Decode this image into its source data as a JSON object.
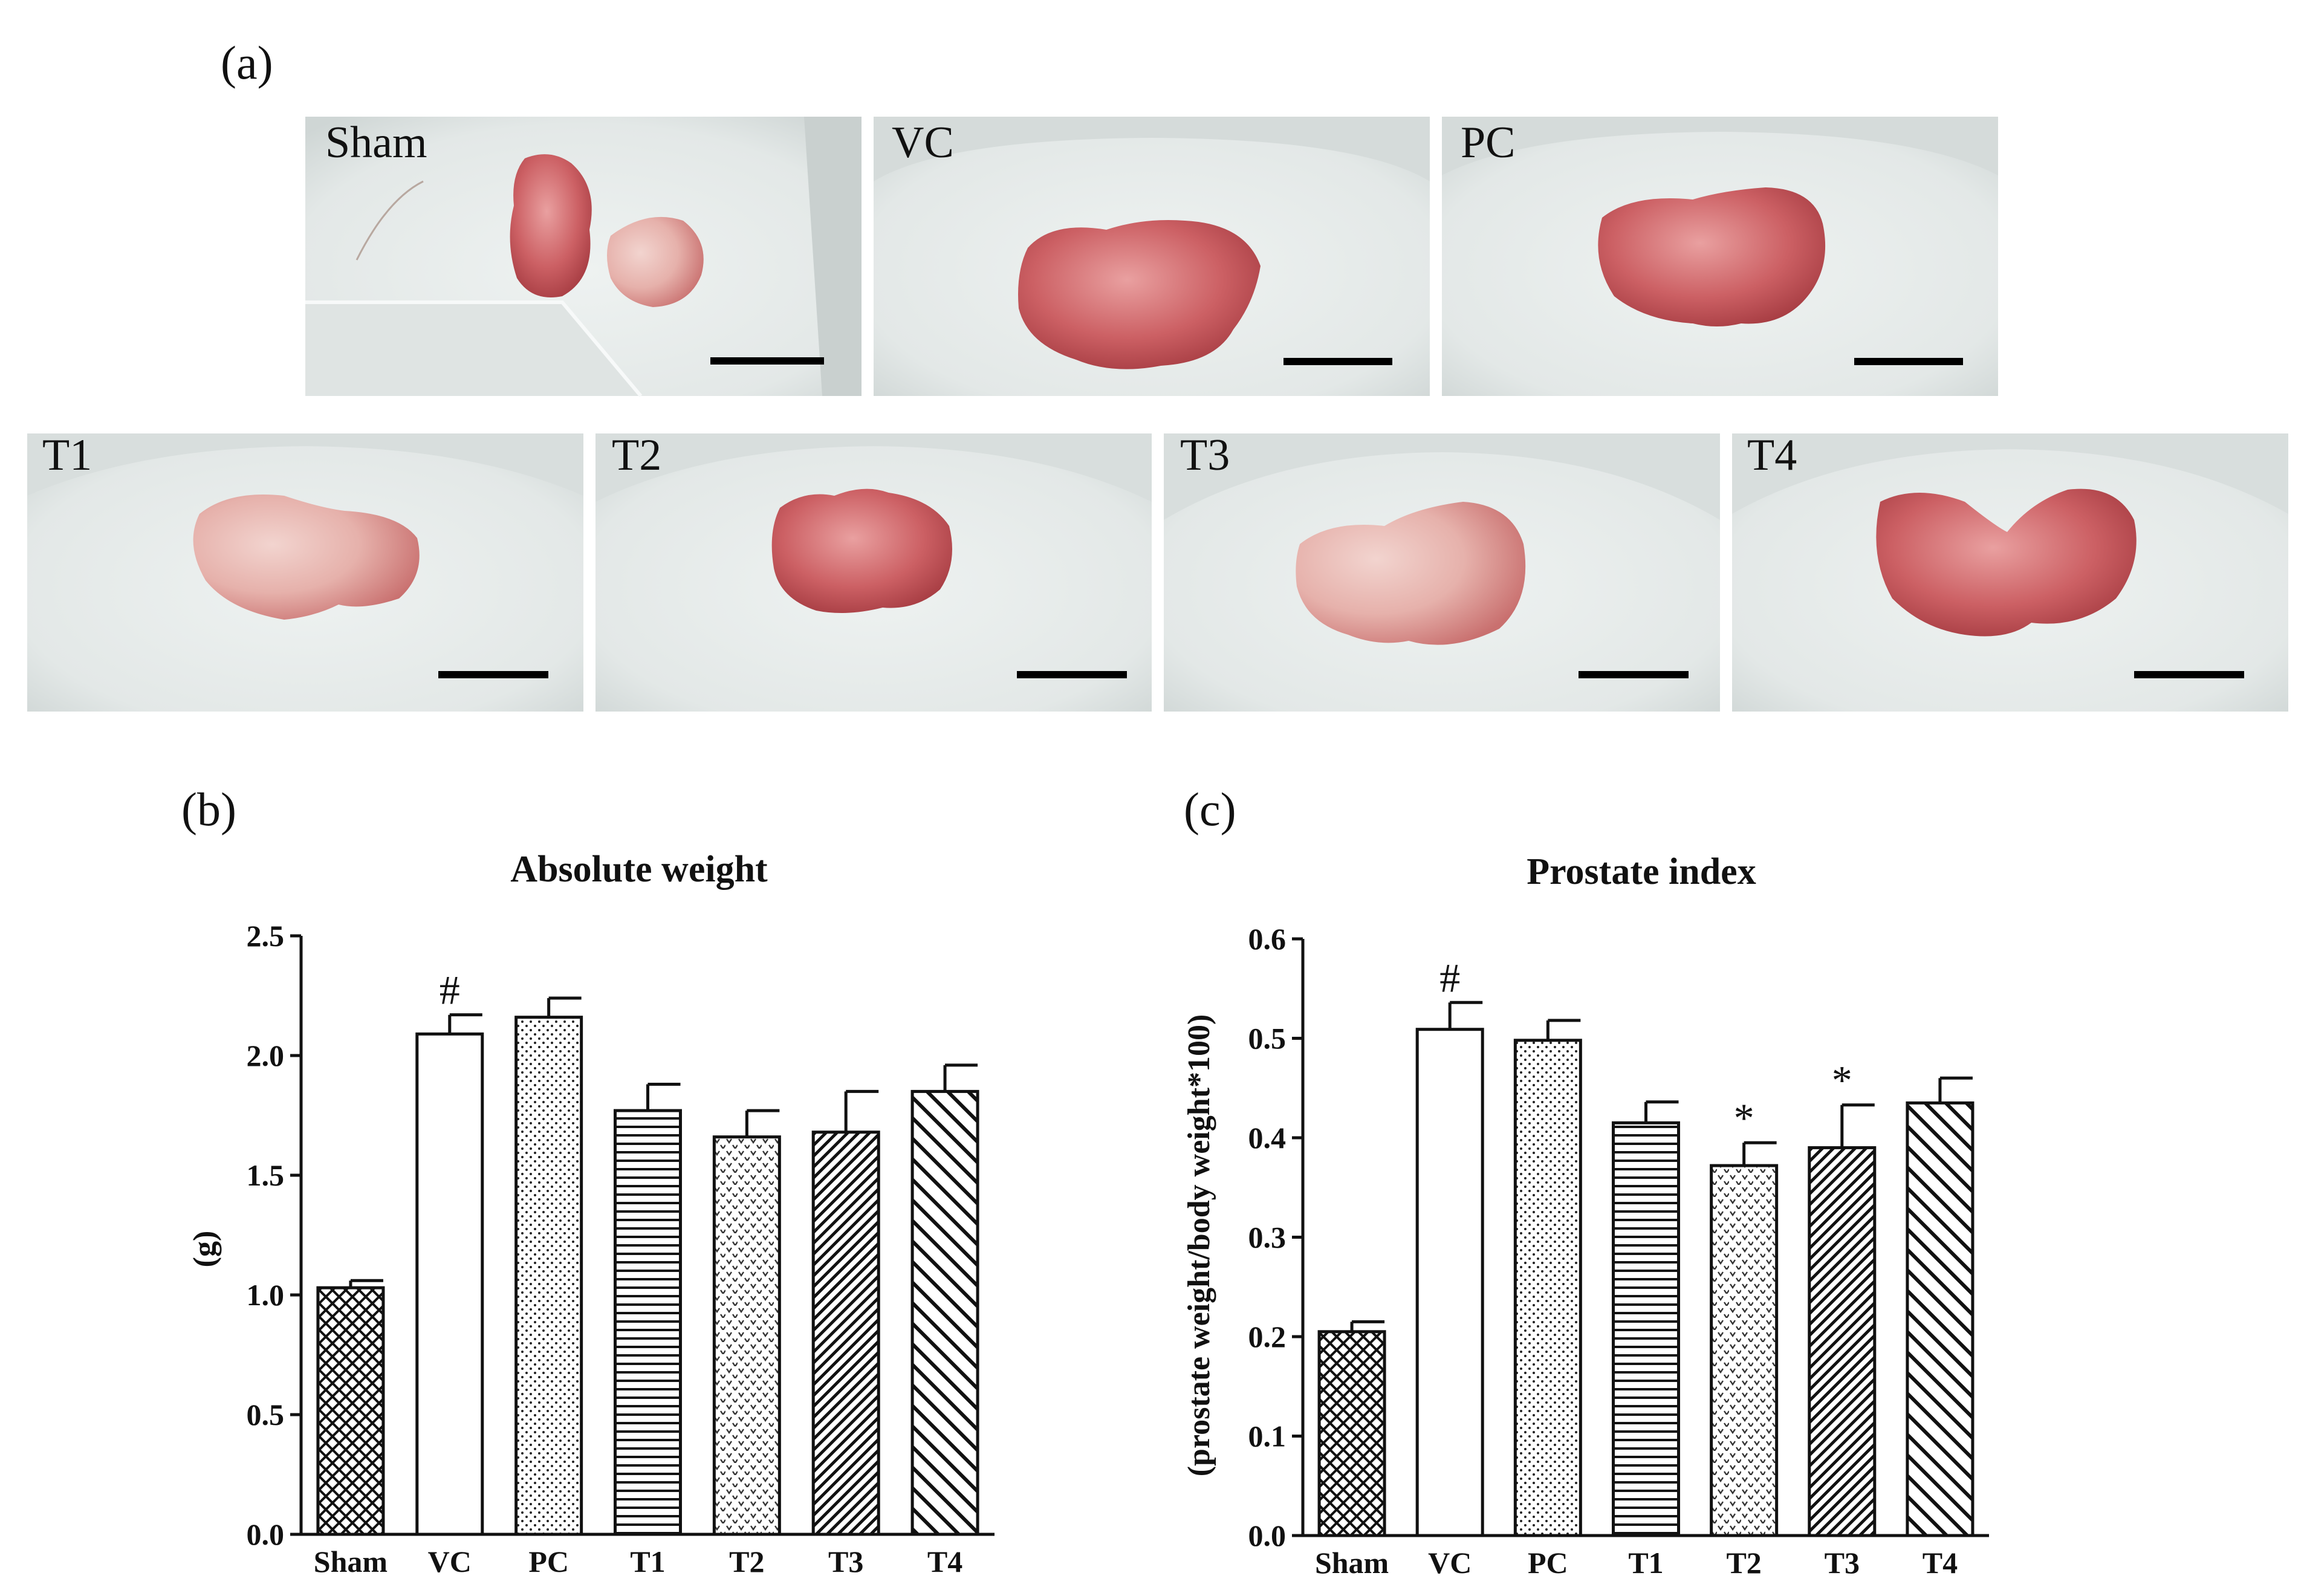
{
  "panels": {
    "a": "(a)",
    "b": "(b)",
    "c": "(c)"
  },
  "photos": [
    {
      "label": "Sham"
    },
    {
      "label": "VC"
    },
    {
      "label": "PC"
    },
    {
      "label": "T1"
    },
    {
      "label": "T2"
    },
    {
      "label": "T3"
    },
    {
      "label": "T4"
    }
  ],
  "colors": {
    "tissue": "#c5555a",
    "tissue_light": "#e8a8a8",
    "dish": "#e6ebea",
    "bar_fill": "#ffffff",
    "ink": "#111111",
    "scale_bar": "#000000"
  },
  "chart_data": [
    {
      "type": "bar",
      "title": "Absolute weight",
      "ylabel": "(g)",
      "xlabel": "",
      "categories": [
        "Sham",
        "VC",
        "PC",
        "T1",
        "T2",
        "T3",
        "T4"
      ],
      "values": [
        1.03,
        2.09,
        2.16,
        1.77,
        1.66,
        1.68,
        1.85
      ],
      "errors": [
        0.03,
        0.08,
        0.08,
        0.11,
        0.11,
        0.17,
        0.11
      ],
      "annotations": [
        "",
        "#",
        "",
        "",
        "",
        "",
        ""
      ],
      "ylim": [
        0,
        2.5
      ],
      "yticks": [
        "0.0",
        "0.5",
        "1.0",
        "1.5",
        "2.0",
        "2.5"
      ],
      "grid": false
    },
    {
      "type": "bar",
      "title": "Prostate index",
      "ylabel": "(prostate weight/body weight*100)",
      "xlabel": "",
      "categories": [
        "Sham",
        "VC",
        "PC",
        "T1",
        "T2",
        "T3",
        "T4"
      ],
      "values": [
        0.205,
        0.509,
        0.498,
        0.415,
        0.372,
        0.39,
        0.435
      ],
      "errors": [
        0.01,
        0.027,
        0.02,
        0.021,
        0.023,
        0.043,
        0.025
      ],
      "annotations": [
        "",
        "#",
        "",
        "",
        "*",
        "*",
        ""
      ],
      "ylim": [
        0,
        0.6
      ],
      "yticks": [
        "0.0",
        "0.1",
        "0.2",
        "0.3",
        "0.4",
        "0.5",
        "0.6"
      ],
      "grid": false
    }
  ]
}
